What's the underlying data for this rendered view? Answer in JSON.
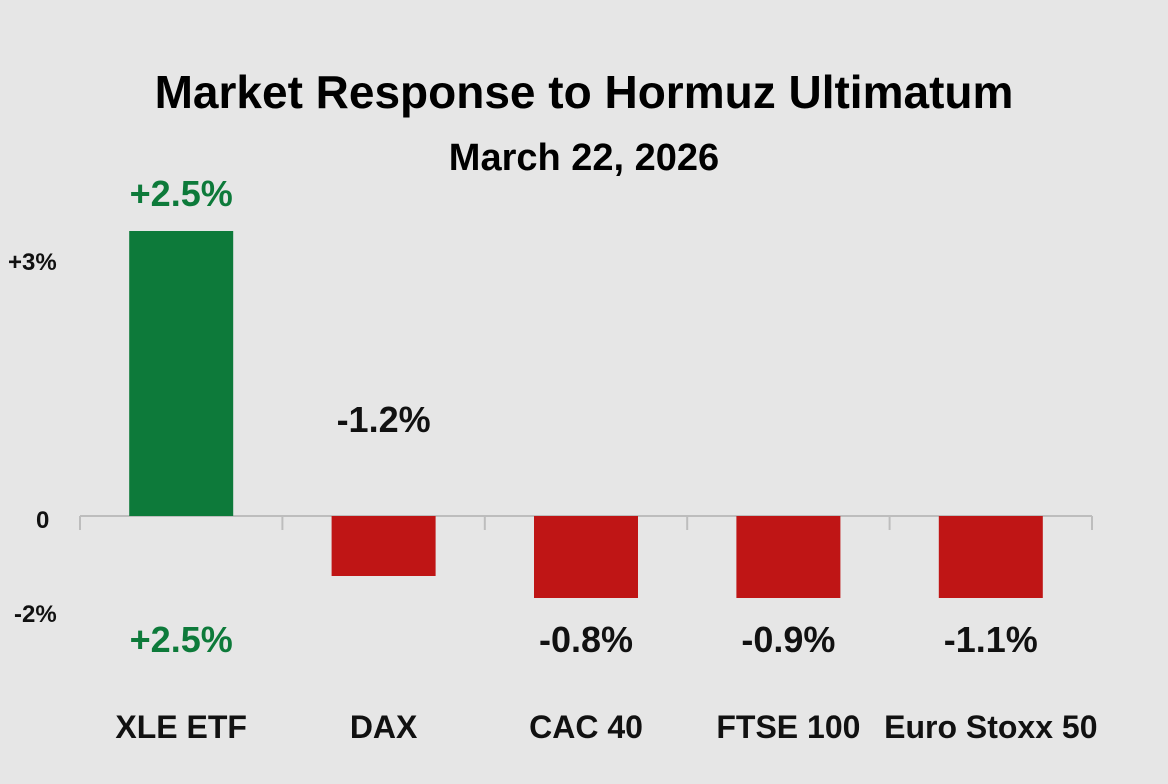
{
  "chart_data": {
    "type": "bar",
    "title": "Market Response to Hormuz Ultimatum",
    "subtitle": "March 22, 2026",
    "categories": [
      "XLE ETF",
      "DAX",
      "CAC 40",
      "FTSE 100",
      "Euro Stoxx 50"
    ],
    "values": [
      2.5,
      -1.2,
      -0.8,
      -0.9,
      -1.1
    ],
    "bar_labels": [
      "+2.5%",
      "-1.2%",
      "-0.8%",
      "-0.9%",
      "-1.1%"
    ],
    "extra_labels": [
      "+2.5%"
    ],
    "yticks": [
      {
        "value": 3,
        "label": "+3%"
      },
      {
        "value": 0,
        "label": "0"
      },
      {
        "value": -2,
        "label": "-2%"
      }
    ],
    "ylim": [
      -2,
      3
    ],
    "grid": false,
    "colors": {
      "positive": "#0d7a3a",
      "negative": "#bf1515",
      "positive_text": "#0d7a3a",
      "text": "#111111",
      "axis": "#bdbdbd"
    }
  }
}
